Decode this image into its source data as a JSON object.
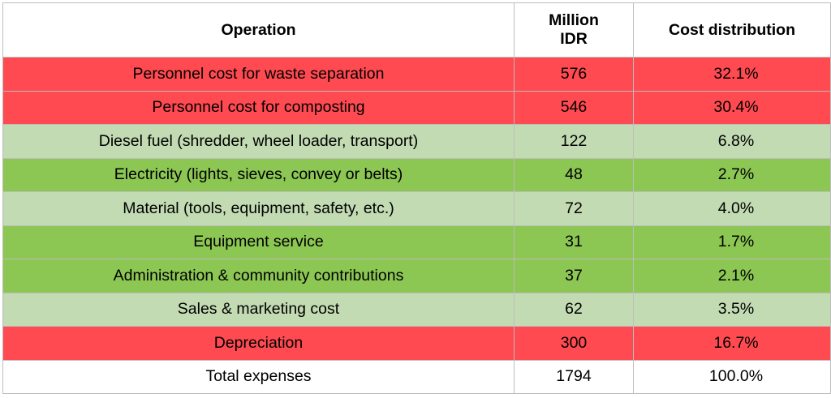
{
  "headers": {
    "operation": "Operation",
    "million_idr_line1": "Million",
    "million_idr_line2": "IDR",
    "cost_distribution": "Cost distribution"
  },
  "colors": {
    "high_cost": "#fe4a50",
    "medium_cost": "#c2dbb2",
    "low_cost": "#8cc653",
    "total": "#ffffff"
  },
  "rows": [
    {
      "operation": "Personnel cost for waste separation",
      "million_idr": "576",
      "cost_distribution": "32.1%",
      "category": "high_cost"
    },
    {
      "operation": "Personnel cost for composting",
      "million_idr": "546",
      "cost_distribution": "30.4%",
      "category": "high_cost"
    },
    {
      "operation": "Diesel fuel (shredder, wheel loader, transport)",
      "million_idr": "122",
      "cost_distribution": "6.8%",
      "category": "medium_cost"
    },
    {
      "operation": "Electricity (lights, sieves, convey or belts)",
      "million_idr": "48",
      "cost_distribution": "2.7%",
      "category": "low_cost"
    },
    {
      "operation": "Material (tools, equipment, safety, etc.)",
      "million_idr": "72",
      "cost_distribution": "4.0%",
      "category": "medium_cost"
    },
    {
      "operation": "Equipment service",
      "million_idr": "31",
      "cost_distribution": "1.7%",
      "category": "low_cost"
    },
    {
      "operation": "Administration & community contributions",
      "million_idr": "37",
      "cost_distribution": "2.1%",
      "category": "low_cost"
    },
    {
      "operation": "Sales & marketing cost",
      "million_idr": "62",
      "cost_distribution": "3.5%",
      "category": "medium_cost"
    },
    {
      "operation": "Depreciation",
      "million_idr": "300",
      "cost_distribution": "16.7%",
      "category": "high_cost"
    }
  ],
  "total": {
    "operation": "Total expenses",
    "million_idr": "1794",
    "cost_distribution": "100.0%"
  }
}
